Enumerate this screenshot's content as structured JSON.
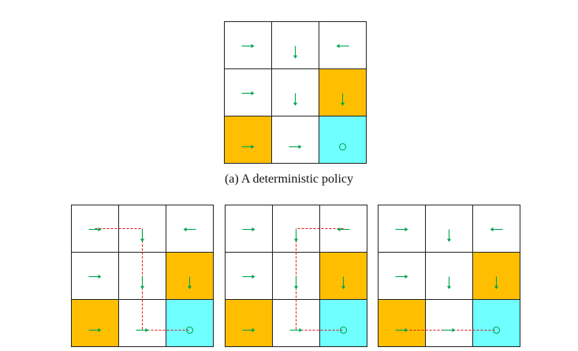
{
  "colors": {
    "cell_default": "#ffffff",
    "cell_forbidden": "#ffbf00",
    "cell_target": "#6fffff",
    "arrow": "#00a550",
    "trajectory": "#e0141e",
    "border": "#222222"
  },
  "caption_a": "(a) A deterministic policy",
  "grids": [
    {
      "id": "policy",
      "cells": [
        [
          "white",
          "white",
          "white"
        ],
        [
          "white",
          "white",
          "orange"
        ],
        [
          "orange",
          "white",
          "cyan"
        ]
      ],
      "actions": [
        [
          "right",
          "down",
          "left"
        ],
        [
          "right",
          "down",
          "down"
        ],
        [
          "right",
          "right",
          "stay"
        ]
      ],
      "trajectory": []
    },
    {
      "id": "trajectory-1",
      "cells": [
        [
          "white",
          "white",
          "white"
        ],
        [
          "white",
          "white",
          "orange"
        ],
        [
          "orange",
          "white",
          "cyan"
        ]
      ],
      "actions": [
        [
          "right",
          "down",
          "left"
        ],
        [
          "right",
          "down",
          "down"
        ],
        [
          "right",
          "right",
          "stay"
        ]
      ],
      "trajectory": [
        [
          0,
          0
        ],
        [
          0,
          1
        ],
        [
          1,
          1
        ],
        [
          2,
          1
        ],
        [
          2,
          2
        ]
      ]
    },
    {
      "id": "trajectory-2",
      "cells": [
        [
          "white",
          "white",
          "white"
        ],
        [
          "white",
          "white",
          "orange"
        ],
        [
          "orange",
          "white",
          "cyan"
        ]
      ],
      "actions": [
        [
          "right",
          "down",
          "left"
        ],
        [
          "right",
          "down",
          "down"
        ],
        [
          "right",
          "right",
          "stay"
        ]
      ],
      "trajectory": [
        [
          0,
          2
        ],
        [
          0,
          1
        ],
        [
          1,
          1
        ],
        [
          2,
          1
        ],
        [
          2,
          2
        ]
      ]
    },
    {
      "id": "trajectory-3",
      "cells": [
        [
          "white",
          "white",
          "white"
        ],
        [
          "white",
          "white",
          "orange"
        ],
        [
          "orange",
          "white",
          "cyan"
        ]
      ],
      "actions": [
        [
          "right",
          "down",
          "left"
        ],
        [
          "right",
          "down",
          "down"
        ],
        [
          "right",
          "right",
          "stay"
        ]
      ],
      "trajectory": [
        [
          2,
          0
        ],
        [
          2,
          1
        ],
        [
          2,
          2
        ]
      ]
    }
  ]
}
